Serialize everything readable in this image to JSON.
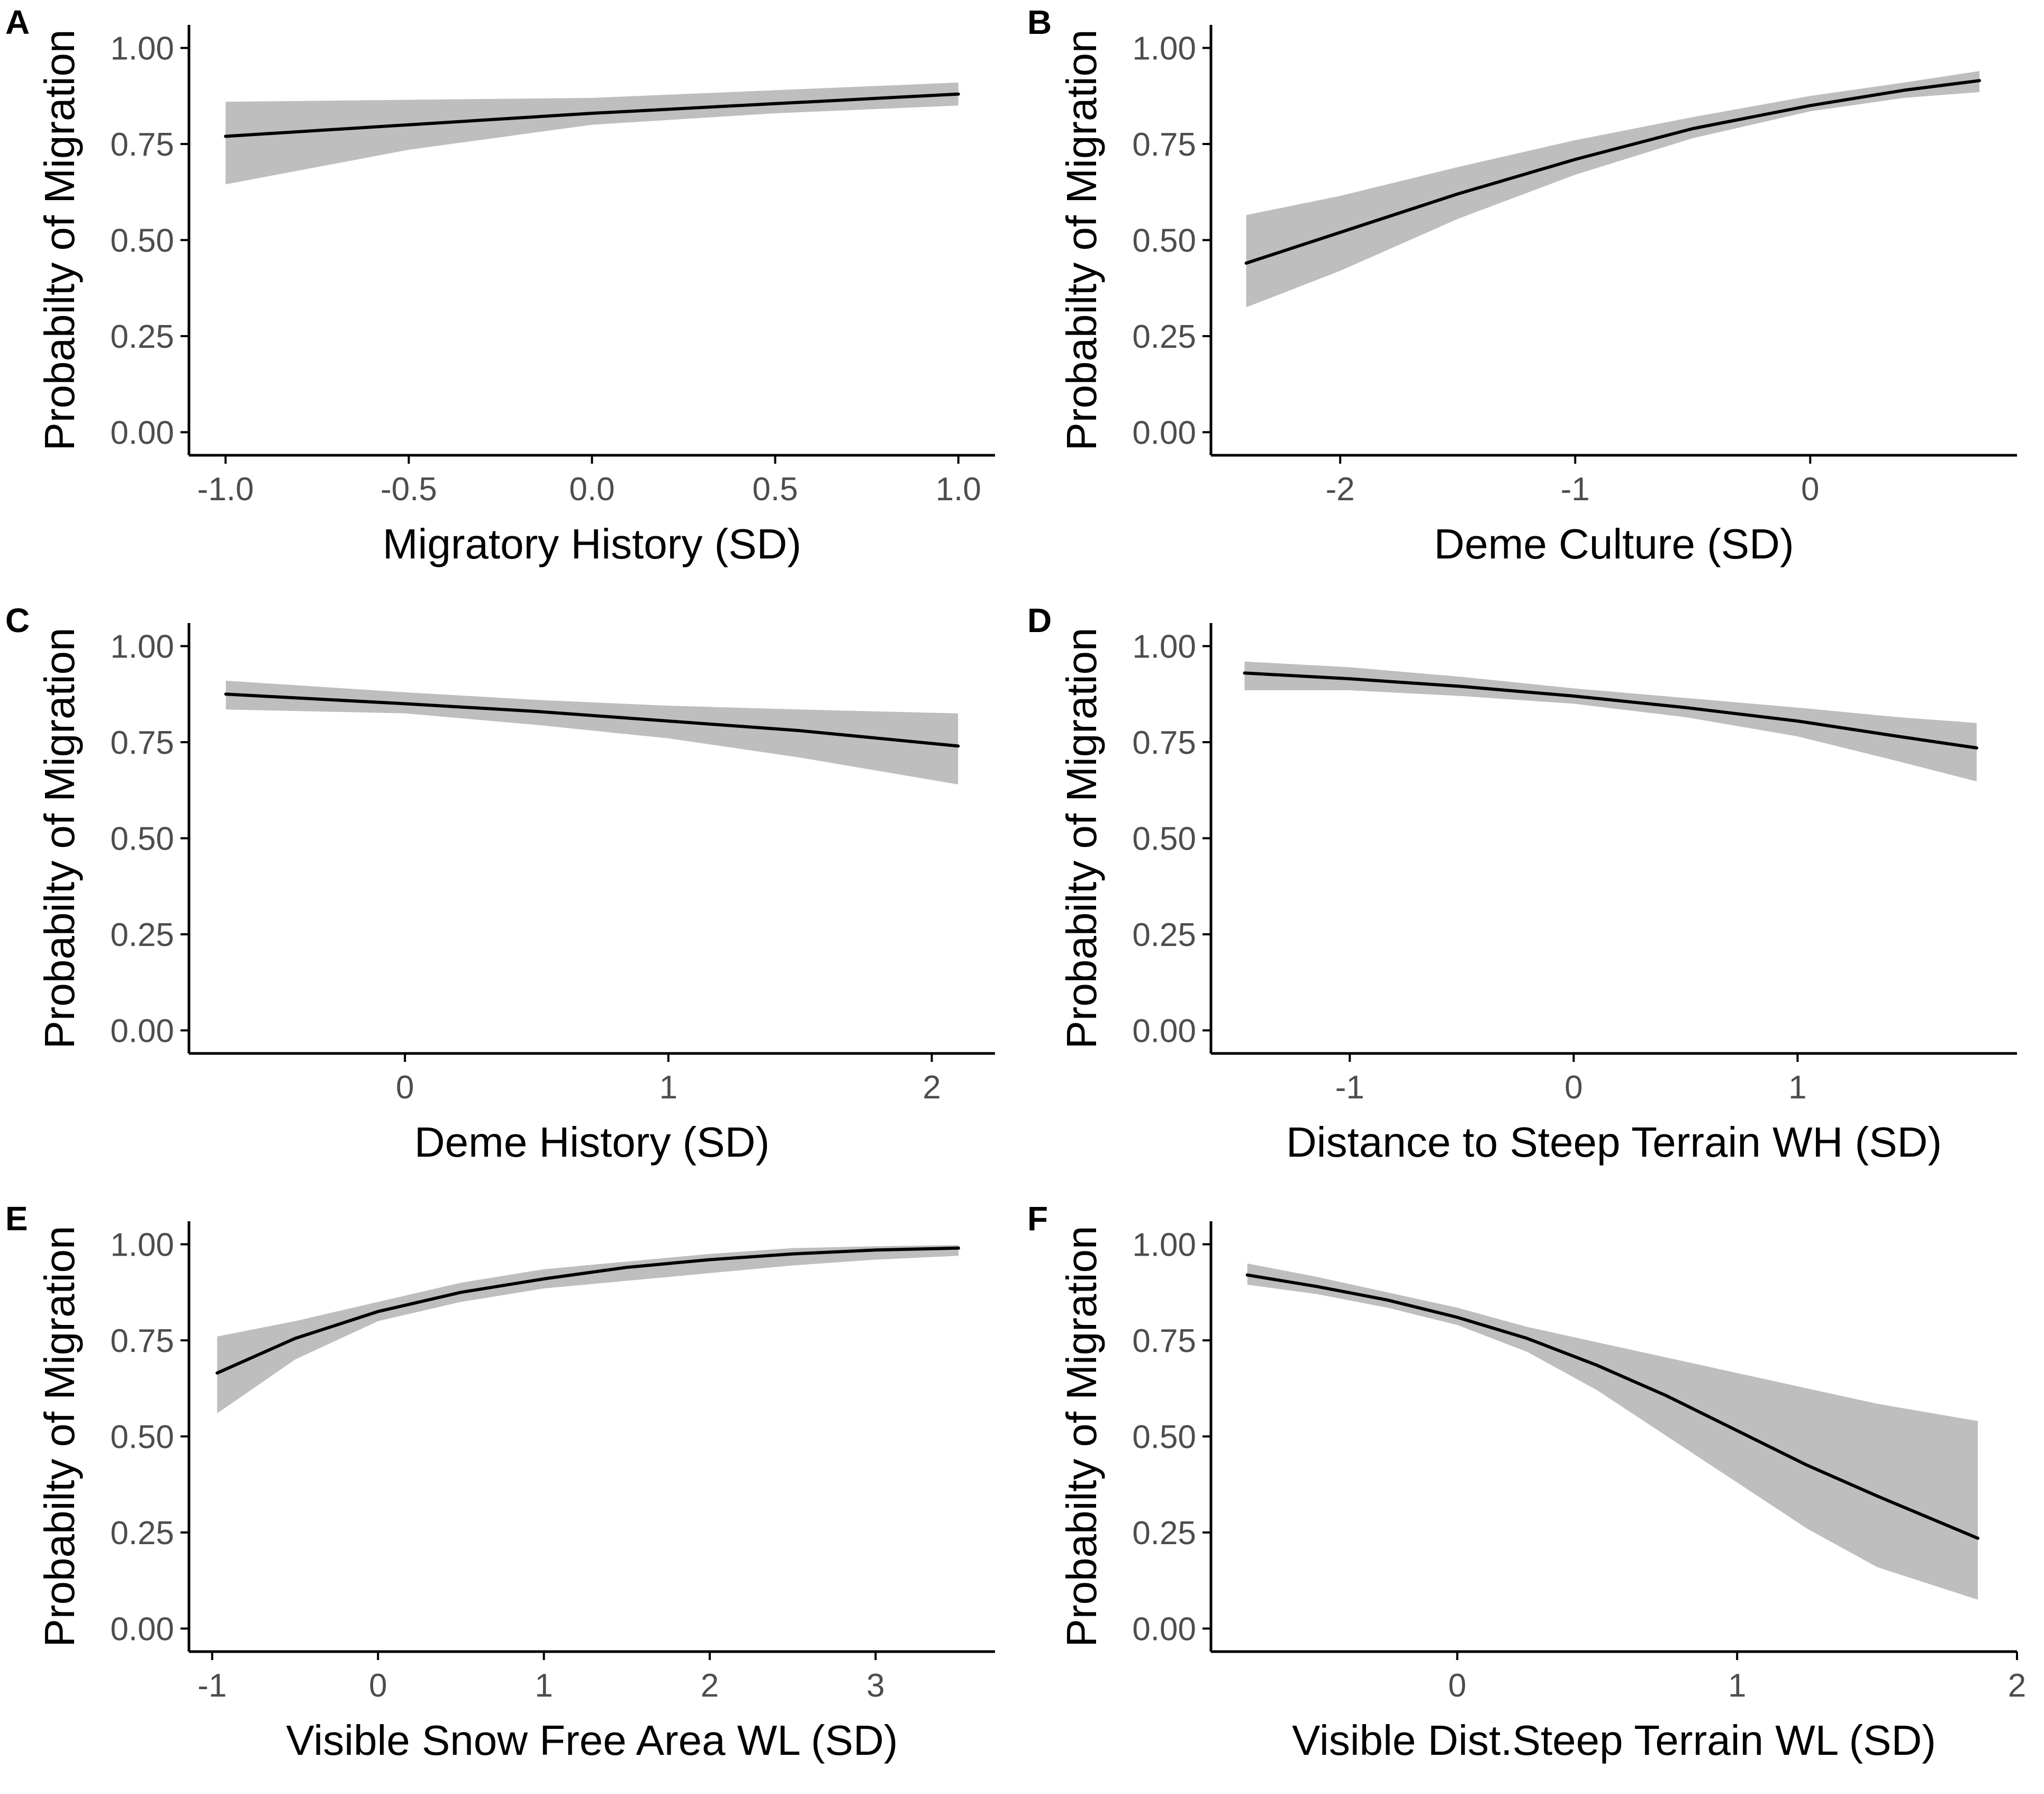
{
  "figure": {
    "colors": {
      "ribbon": "#bebebe",
      "line": "#000000",
      "axis": "#000000",
      "tick_text": "#4d4d4d"
    }
  },
  "chart_data": [
    {
      "panel": "A",
      "type": "line",
      "title": "",
      "xlabel": "Migratory History (SD)",
      "ylabel": "Probabilty of Migration",
      "xlim": [
        -1.1,
        1.1
      ],
      "ylim": [
        -0.06,
        1.06
      ],
      "xticks": [
        -1.0,
        -0.5,
        0.0,
        0.5,
        1.0
      ],
      "xtick_labels": [
        "-1.0",
        "-0.5",
        "0.0",
        "0.5",
        "1.0"
      ],
      "yticks": [
        0,
        0.25,
        0.5,
        0.75,
        1.0
      ],
      "ytick_labels": [
        "0.00",
        "0.25",
        "0.50",
        "0.75",
        "1.00"
      ],
      "x": [
        -1.0,
        -0.5,
        0.0,
        0.5,
        1.0
      ],
      "fit": [
        0.77,
        0.8,
        0.83,
        0.855,
        0.88
      ],
      "lower": [
        0.645,
        0.735,
        0.8,
        0.83,
        0.85
      ],
      "upper": [
        0.86,
        0.865,
        0.87,
        0.89,
        0.91
      ]
    },
    {
      "panel": "B",
      "type": "line",
      "title": "",
      "xlabel": "Deme Culture (SD)",
      "ylabel": "Probabilty of Migration",
      "xlim": [
        -2.55,
        0.88
      ],
      "ylim": [
        -0.06,
        1.06
      ],
      "xticks": [
        -2,
        -1,
        0
      ],
      "xtick_labels": [
        "-2",
        "-1",
        "0"
      ],
      "yticks": [
        0,
        0.25,
        0.5,
        0.75,
        1.0
      ],
      "ytick_labels": [
        "0.00",
        "0.25",
        "0.50",
        "0.75",
        "1.00"
      ],
      "x": [
        -2.4,
        -2.0,
        -1.5,
        -1.0,
        -0.5,
        0.0,
        0.4,
        0.72
      ],
      "fit": [
        0.44,
        0.52,
        0.62,
        0.71,
        0.79,
        0.85,
        0.89,
        0.915
      ],
      "lower": [
        0.325,
        0.42,
        0.555,
        0.67,
        0.765,
        0.835,
        0.87,
        0.885
      ],
      "upper": [
        0.565,
        0.615,
        0.69,
        0.76,
        0.82,
        0.875,
        0.91,
        0.94
      ]
    },
    {
      "panel": "C",
      "type": "line",
      "title": "",
      "xlabel": "Deme History (SD)",
      "ylabel": "Probabilty of Migration",
      "xlim": [
        -0.82,
        2.24
      ],
      "ylim": [
        -0.06,
        1.06
      ],
      "xticks": [
        0,
        1,
        2
      ],
      "xtick_labels": [
        "0",
        "1",
        "2"
      ],
      "yticks": [
        0,
        0.25,
        0.5,
        0.75,
        1.0
      ],
      "ytick_labels": [
        "0.00",
        "0.25",
        "0.50",
        "0.75",
        "1.00"
      ],
      "x": [
        -0.68,
        0.0,
        0.5,
        1.0,
        1.5,
        2.1
      ],
      "fit": [
        0.875,
        0.85,
        0.83,
        0.805,
        0.78,
        0.74
      ],
      "lower": [
        0.835,
        0.825,
        0.795,
        0.76,
        0.71,
        0.64
      ],
      "upper": [
        0.91,
        0.88,
        0.86,
        0.845,
        0.835,
        0.825
      ]
    },
    {
      "panel": "D",
      "type": "line",
      "title": "",
      "xlabel": "Distance to Steep Terrain WH (SD)",
      "ylabel": "Probabilty of Migration",
      "xlim": [
        -1.62,
        1.98
      ],
      "ylim": [
        -0.06,
        1.06
      ],
      "xticks": [
        -1,
        0,
        1
      ],
      "xtick_labels": [
        "-1",
        "0",
        "1"
      ],
      "yticks": [
        0,
        0.25,
        0.5,
        0.75,
        1.0
      ],
      "ytick_labels": [
        "0.00",
        "0.25",
        "0.50",
        "0.75",
        "1.00"
      ],
      "x": [
        -1.47,
        -1.0,
        -0.5,
        0.0,
        0.5,
        1.0,
        1.45,
        1.8
      ],
      "fit": [
        0.93,
        0.915,
        0.895,
        0.87,
        0.84,
        0.805,
        0.765,
        0.735
      ],
      "lower": [
        0.885,
        0.885,
        0.87,
        0.85,
        0.815,
        0.765,
        0.7,
        0.648
      ],
      "upper": [
        0.96,
        0.945,
        0.92,
        0.89,
        0.865,
        0.84,
        0.815,
        0.8
      ]
    },
    {
      "panel": "E",
      "type": "line",
      "title": "",
      "xlabel": "Visible Snow Free Area WL (SD)",
      "ylabel": "Probabilty of Migration",
      "xlim": [
        -1.14,
        3.72
      ],
      "ylim": [
        -0.06,
        1.06
      ],
      "xticks": [
        -1,
        0,
        1,
        2,
        3
      ],
      "xtick_labels": [
        "-1",
        "0",
        "1",
        "2",
        "3"
      ],
      "yticks": [
        0,
        0.25,
        0.5,
        0.75,
        1.0
      ],
      "ytick_labels": [
        "0.00",
        "0.25",
        "0.50",
        "0.75",
        "1.00"
      ],
      "x": [
        -0.97,
        -0.5,
        0.0,
        0.5,
        1.0,
        1.5,
        2.0,
        2.5,
        3.0,
        3.5
      ],
      "fit": [
        0.665,
        0.755,
        0.825,
        0.875,
        0.91,
        0.94,
        0.96,
        0.975,
        0.985,
        0.99
      ],
      "lower": [
        0.56,
        0.7,
        0.8,
        0.85,
        0.885,
        0.905,
        0.925,
        0.945,
        0.96,
        0.97
      ],
      "upper": [
        0.76,
        0.8,
        0.85,
        0.9,
        0.935,
        0.955,
        0.975,
        0.99,
        0.995,
        0.998
      ]
    },
    {
      "panel": "F",
      "type": "line",
      "title": "",
      "xlabel": "Visible Dist.Steep Terrain WL (SD)",
      "ylabel": "Probabilty of Migration",
      "xlim": [
        -0.88,
        2.0
      ],
      "ylim": [
        -0.06,
        1.06
      ],
      "xticks": [
        0,
        1,
        2
      ],
      "xtick_labels": [
        "0",
        "1",
        "2"
      ],
      "yticks": [
        0,
        0.25,
        0.5,
        0.75,
        1.0
      ],
      "ytick_labels": [
        "0.00",
        "0.25",
        "0.50",
        "0.75",
        "1.00"
      ],
      "x": [
        -0.75,
        -0.5,
        -0.25,
        0.0,
        0.25,
        0.5,
        0.75,
        1.0,
        1.25,
        1.5,
        1.86
      ],
      "fit": [
        0.92,
        0.89,
        0.855,
        0.81,
        0.755,
        0.685,
        0.605,
        0.515,
        0.425,
        0.345,
        0.235
      ],
      "lower": [
        0.895,
        0.87,
        0.835,
        0.79,
        0.72,
        0.62,
        0.5,
        0.38,
        0.26,
        0.16,
        0.075
      ],
      "upper": [
        0.95,
        0.915,
        0.875,
        0.835,
        0.785,
        0.745,
        0.705,
        0.665,
        0.625,
        0.585,
        0.54
      ]
    }
  ]
}
